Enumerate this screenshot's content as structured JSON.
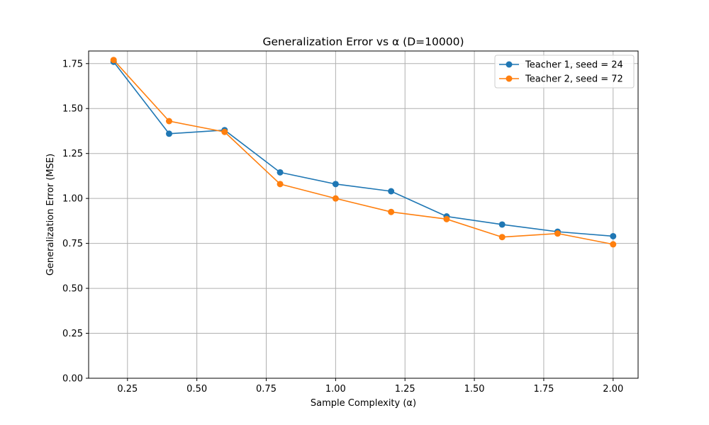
{
  "chart_data": {
    "type": "line",
    "title": "Generalization Error vs α (D=10000)",
    "xlabel": "Sample Complexity (α)",
    "ylabel": "Generalization Error (MSE)",
    "xlim": [
      0.11,
      2.09
    ],
    "ylim": [
      0.0,
      1.82
    ],
    "xticks": [
      0.25,
      0.5,
      0.75,
      1.0,
      1.25,
      1.5,
      1.75,
      2.0
    ],
    "xtick_labels": [
      "0.25",
      "0.50",
      "0.75",
      "1.00",
      "1.25",
      "1.50",
      "1.75",
      "2.00"
    ],
    "yticks": [
      0.0,
      0.25,
      0.5,
      0.75,
      1.0,
      1.25,
      1.5,
      1.75
    ],
    "ytick_labels": [
      "0.00",
      "0.25",
      "0.50",
      "0.75",
      "1.00",
      "1.25",
      "1.50",
      "1.75"
    ],
    "grid": true,
    "legend_position": "top-right",
    "x": [
      0.2,
      0.4,
      0.6,
      0.8,
      1.0,
      1.2,
      1.4,
      1.6,
      1.8,
      2.0
    ],
    "series": [
      {
        "name": "Teacher 1, seed = 24",
        "color": "#1f77b4",
        "values": [
          1.76,
          1.36,
          1.38,
          1.145,
          1.08,
          1.04,
          0.9,
          0.855,
          0.815,
          0.79
        ]
      },
      {
        "name": "Teacher 2, seed = 72",
        "color": "#ff7f0e",
        "values": [
          1.77,
          1.43,
          1.37,
          1.08,
          1.0,
          0.925,
          0.885,
          0.785,
          0.805,
          0.745
        ]
      }
    ]
  }
}
